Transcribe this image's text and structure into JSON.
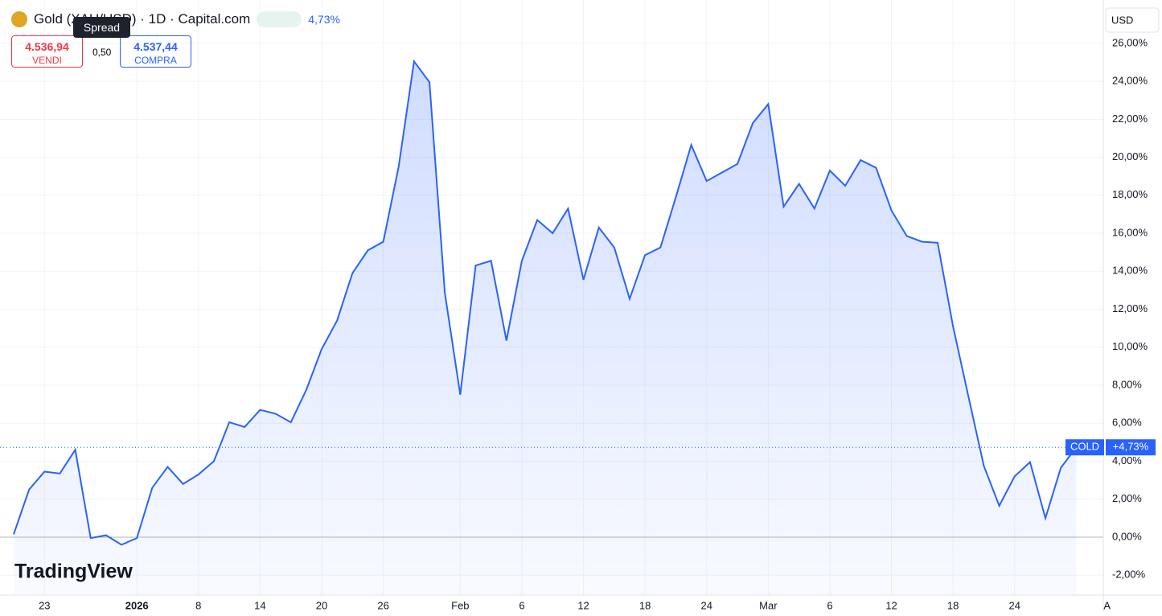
{
  "chart_data": {
    "type": "line",
    "title": "Gold (XAU/USD) · 1D · Capital.com",
    "change": "4,73%",
    "sell": {
      "price": "4.536,94",
      "label": "VENDI"
    },
    "buy": {
      "price": "4.537,44",
      "label": "COMPRA"
    },
    "spread": {
      "value": "0,50",
      "label": "Spread"
    },
    "currency": "USD",
    "watermark": "TradingView",
    "last_label": {
      "name": "COLD",
      "value": 4.73,
      "value_label": "+4,73%"
    },
    "categories": [
      null,
      null,
      "23",
      null,
      null,
      null,
      null,
      null,
      "2026",
      null,
      null,
      null,
      "8",
      null,
      null,
      null,
      "14",
      null,
      null,
      null,
      "20",
      null,
      null,
      null,
      "26",
      null,
      null,
      null,
      null,
      "Feb",
      null,
      null,
      null,
      "6",
      null,
      null,
      null,
      "12",
      null,
      null,
      null,
      "18",
      null,
      null,
      null,
      "24",
      null,
      null,
      null,
      "Mar",
      null,
      null,
      null,
      "6",
      null,
      null,
      null,
      "12",
      null,
      null,
      null,
      "18",
      null,
      null,
      null,
      "24",
      null,
      null,
      null,
      null,
      null,
      "A"
    ],
    "series": [
      {
        "name": "COLD",
        "color": "#2962ff",
        "values": [
          0.15,
          2.5,
          3.45,
          3.35,
          4.6,
          -0.05,
          0.1,
          -0.4,
          -0.05,
          2.6,
          3.7,
          2.8,
          3.3,
          4.0,
          6.05,
          5.8,
          6.7,
          6.5,
          6.05,
          7.75,
          9.9,
          11.4,
          13.9,
          15.1,
          15.55,
          19.5,
          25.05,
          23.95,
          12.85,
          7.5,
          14.3,
          14.55,
          10.35,
          14.55,
          16.7,
          16.0,
          17.3,
          13.55,
          16.3,
          15.25,
          12.55,
          14.85,
          15.25,
          17.9,
          20.65,
          18.75,
          19.2,
          19.65,
          21.8,
          22.8,
          17.4,
          18.6,
          17.3,
          19.3,
          18.5,
          19.85,
          19.45,
          17.2,
          15.85,
          15.55,
          15.5,
          11.1,
          7.4,
          3.75,
          1.65,
          3.2,
          3.95,
          1.0,
          3.65,
          4.73,
          null,
          null
        ]
      }
    ],
    "ylim": [
      -3.05,
      28.28
    ],
    "yticks": [
      {
        "value": -2,
        "label": "-2,00%"
      },
      {
        "value": 0,
        "label": "0,00%"
      },
      {
        "value": 2,
        "label": "2,00%"
      },
      {
        "value": 4,
        "label": "4,00%"
      },
      {
        "value": 6,
        "label": "6,00%"
      },
      {
        "value": 8,
        "label": "8,00%"
      },
      {
        "value": 10,
        "label": "10,00%"
      },
      {
        "value": 12,
        "label": "12,00%"
      },
      {
        "value": 14,
        "label": "14,00%"
      },
      {
        "value": 16,
        "label": "16,00%"
      },
      {
        "value": 18,
        "label": "18,00%"
      },
      {
        "value": 20,
        "label": "20,00%"
      },
      {
        "value": 22,
        "label": "22,00%"
      },
      {
        "value": 24,
        "label": "24,00%"
      },
      {
        "value": 26,
        "label": "26,00%"
      }
    ],
    "grid": true
  }
}
